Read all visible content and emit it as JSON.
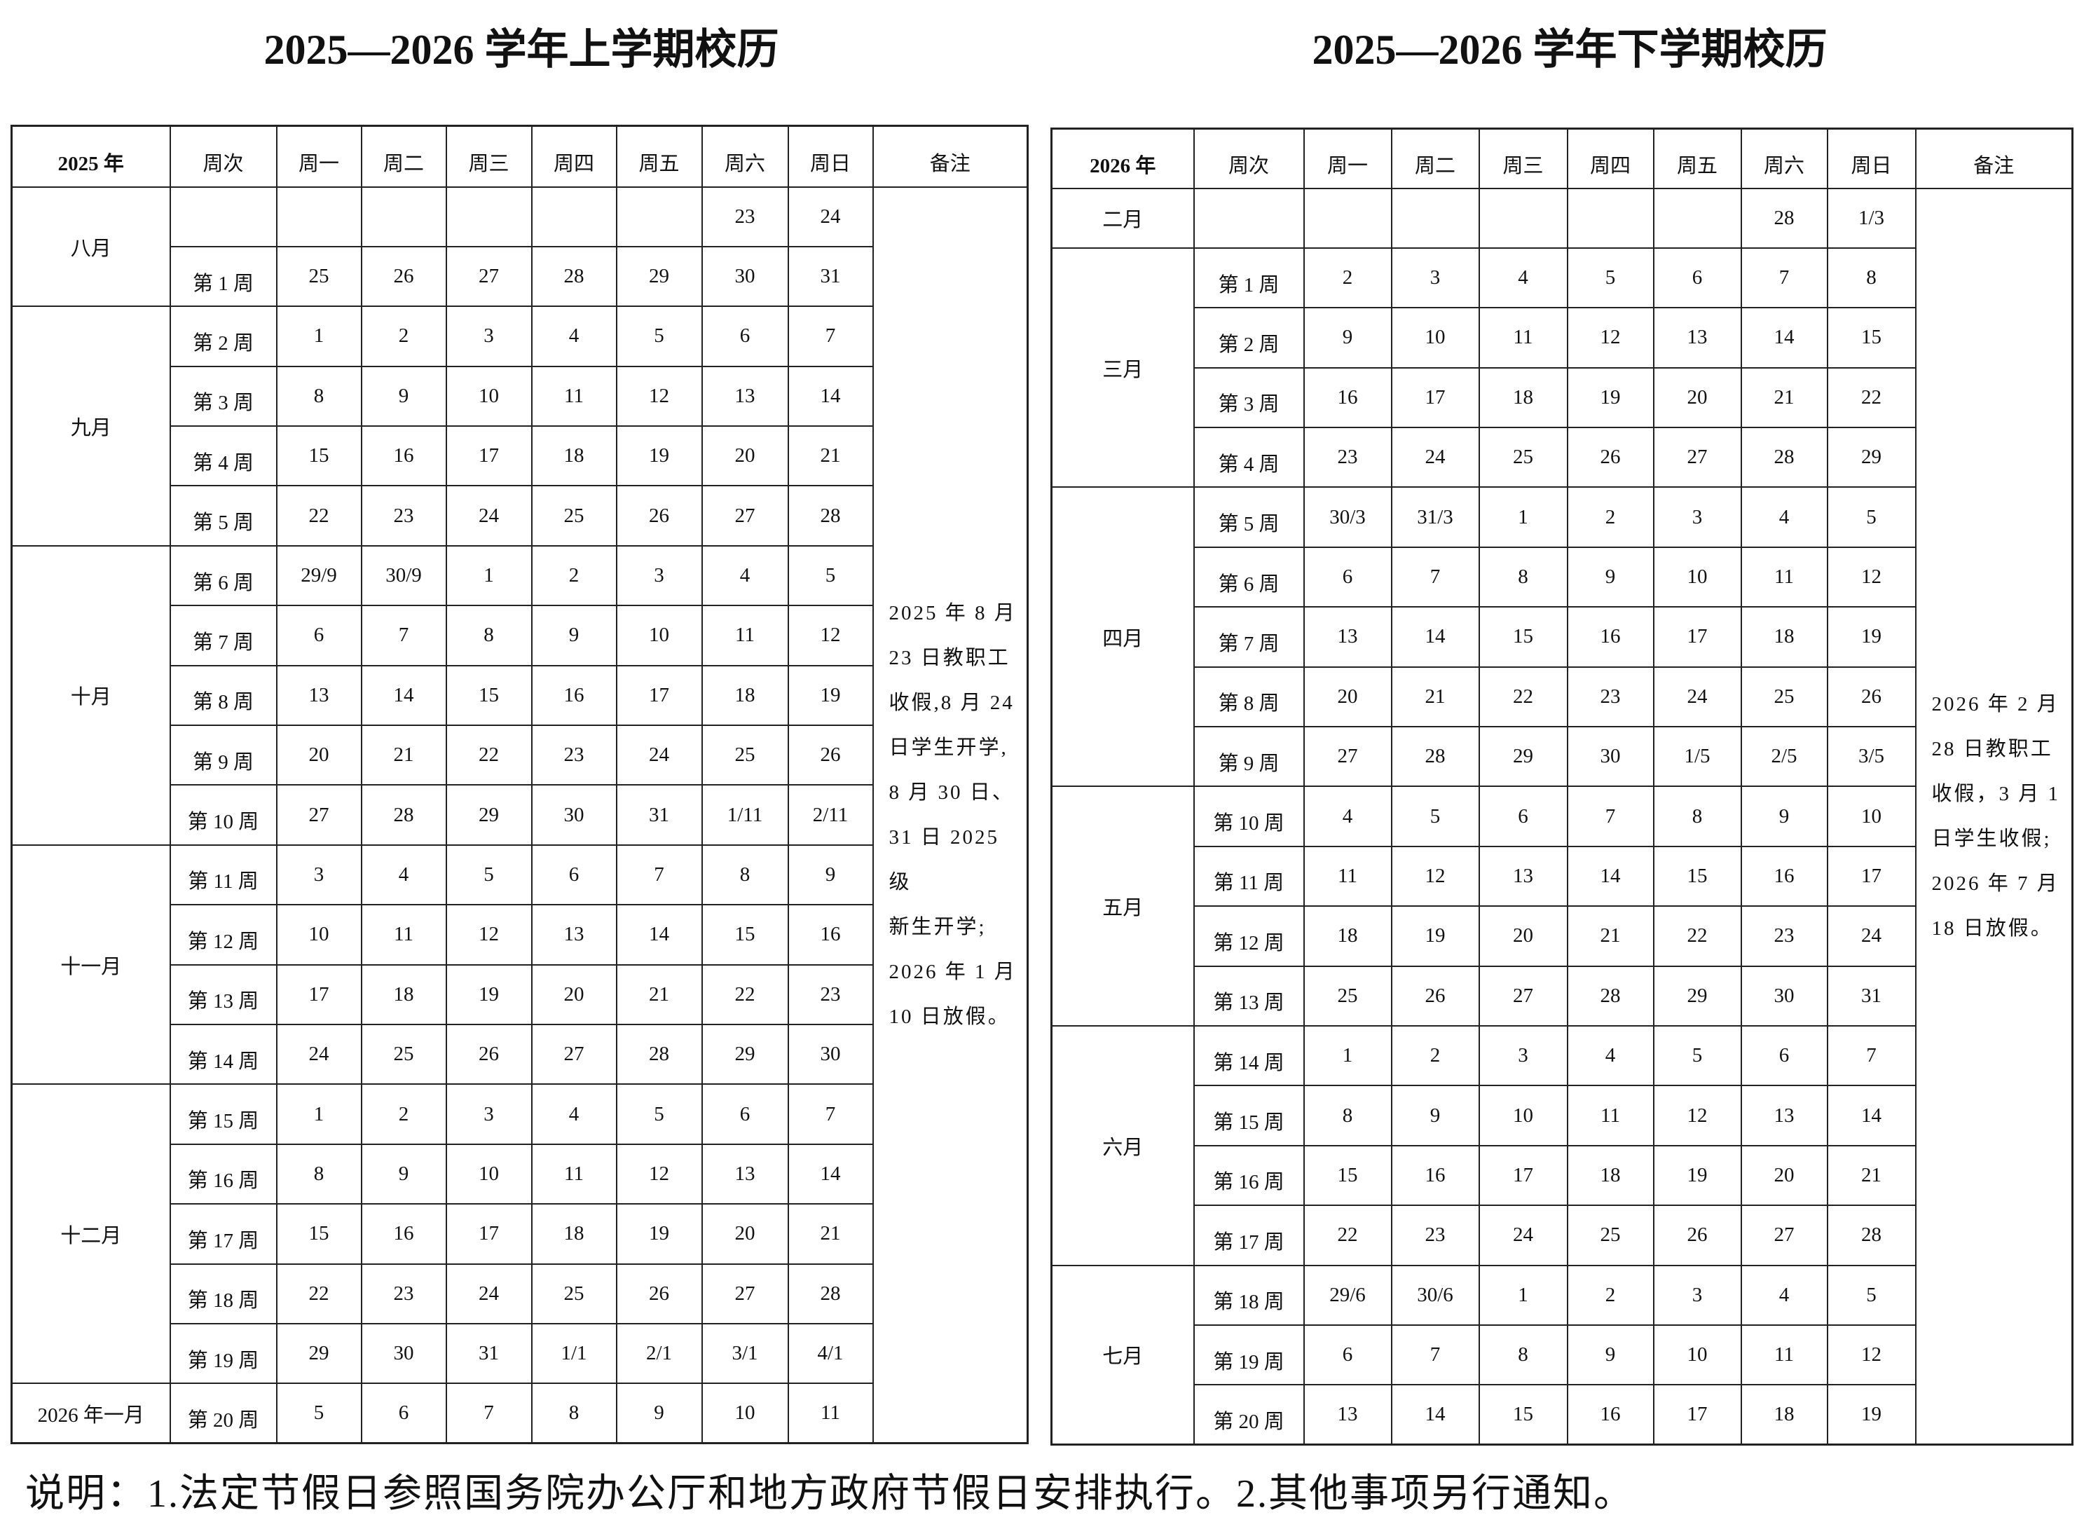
{
  "first": {
    "title": "2025—2026 学年上学期校历",
    "headers": [
      "2025 年",
      "周次",
      "周一",
      "周二",
      "周三",
      "周四",
      "周五",
      "周六",
      "周日",
      "备注"
    ],
    "months": [
      {
        "label": "八月",
        "rows": 2
      },
      {
        "label": "九月",
        "rows": 4
      },
      {
        "label": "十月",
        "rows": 5
      },
      {
        "label": "十一月",
        "rows": 4
      },
      {
        "label": "十二月",
        "rows": 5
      },
      {
        "label": "2026 年一月",
        "rows": 1
      }
    ],
    "rows": [
      {
        "week": "",
        "days": [
          "",
          "",
          "",
          "",
          "",
          "23",
          "24"
        ]
      },
      {
        "week": "第 1 周",
        "days": [
          "25",
          "26",
          "27",
          "28",
          "29",
          "30",
          "31"
        ]
      },
      {
        "week": "第 2 周",
        "days": [
          "1",
          "2",
          "3",
          "4",
          "5",
          "6",
          "7"
        ]
      },
      {
        "week": "第 3 周",
        "days": [
          "8",
          "9",
          "10",
          "11",
          "12",
          "13",
          "14"
        ]
      },
      {
        "week": "第 4 周",
        "days": [
          "15",
          "16",
          "17",
          "18",
          "19",
          "20",
          "21"
        ]
      },
      {
        "week": "第 5 周",
        "days": [
          "22",
          "23",
          "24",
          "25",
          "26",
          "27",
          "28"
        ]
      },
      {
        "week": "第 6 周",
        "days": [
          "29/9",
          "30/9",
          "1",
          "2",
          "3",
          "4",
          "5"
        ]
      },
      {
        "week": "第 7 周",
        "days": [
          "6",
          "7",
          "8",
          "9",
          "10",
          "11",
          "12"
        ]
      },
      {
        "week": "第 8 周",
        "days": [
          "13",
          "14",
          "15",
          "16",
          "17",
          "18",
          "19"
        ]
      },
      {
        "week": "第 9 周",
        "days": [
          "20",
          "21",
          "22",
          "23",
          "24",
          "25",
          "26"
        ]
      },
      {
        "week": "第 10 周",
        "days": [
          "27",
          "28",
          "29",
          "30",
          "31",
          "1/11",
          "2/11"
        ]
      },
      {
        "week": "第 11 周",
        "days": [
          "3",
          "4",
          "5",
          "6",
          "7",
          "8",
          "9"
        ]
      },
      {
        "week": "第 12 周",
        "days": [
          "10",
          "11",
          "12",
          "13",
          "14",
          "15",
          "16"
        ]
      },
      {
        "week": "第 13 周",
        "days": [
          "17",
          "18",
          "19",
          "20",
          "21",
          "22",
          "23"
        ]
      },
      {
        "week": "第 14 周",
        "days": [
          "24",
          "25",
          "26",
          "27",
          "28",
          "29",
          "30"
        ]
      },
      {
        "week": "第 15 周",
        "days": [
          "1",
          "2",
          "3",
          "4",
          "5",
          "6",
          "7"
        ]
      },
      {
        "week": "第 16 周",
        "days": [
          "8",
          "9",
          "10",
          "11",
          "12",
          "13",
          "14"
        ]
      },
      {
        "week": "第 17 周",
        "days": [
          "15",
          "16",
          "17",
          "18",
          "19",
          "20",
          "21"
        ]
      },
      {
        "week": "第 18 周",
        "days": [
          "22",
          "23",
          "24",
          "25",
          "26",
          "27",
          "28"
        ]
      },
      {
        "week": "第 19 周",
        "days": [
          "29",
          "30",
          "31",
          "1/1",
          "2/1",
          "3/1",
          "4/1"
        ]
      },
      {
        "week": "第 20 周",
        "days": [
          "5",
          "6",
          "7",
          "8",
          "9",
          "10",
          "11"
        ]
      }
    ],
    "note": [
      "2025 年 8 月",
      "23 日教职工",
      "收假,8 月 24",
      "日学生开学,",
      "8 月 30 日、",
      "31 日 2025 级",
      "新生开学;",
      "2026 年 1 月",
      "10 日放假。"
    ]
  },
  "second": {
    "title": "2025—2026 学年下学期校历",
    "headers": [
      "2026 年",
      "周次",
      "周一",
      "周二",
      "周三",
      "周四",
      "周五",
      "周六",
      "周日",
      "备注"
    ],
    "months": [
      {
        "label": "二月",
        "rows": 1
      },
      {
        "label": "三月",
        "rows": 4
      },
      {
        "label": "四月",
        "rows": 5
      },
      {
        "label": "五月",
        "rows": 4
      },
      {
        "label": "六月",
        "rows": 4
      },
      {
        "label": "七月",
        "rows": 3
      }
    ],
    "rows": [
      {
        "week": "",
        "days": [
          "",
          "",
          "",
          "",
          "",
          "28",
          "1/3"
        ]
      },
      {
        "week": "第 1 周",
        "days": [
          "2",
          "3",
          "4",
          "5",
          "6",
          "7",
          "8"
        ]
      },
      {
        "week": "第 2 周",
        "days": [
          "9",
          "10",
          "11",
          "12",
          "13",
          "14",
          "15"
        ]
      },
      {
        "week": "第 3 周",
        "days": [
          "16",
          "17",
          "18",
          "19",
          "20",
          "21",
          "22"
        ]
      },
      {
        "week": "第 4 周",
        "days": [
          "23",
          "24",
          "25",
          "26",
          "27",
          "28",
          "29"
        ]
      },
      {
        "week": "第 5 周",
        "days": [
          "30/3",
          "31/3",
          "1",
          "2",
          "3",
          "4",
          "5"
        ]
      },
      {
        "week": "第 6 周",
        "days": [
          "6",
          "7",
          "8",
          "9",
          "10",
          "11",
          "12"
        ]
      },
      {
        "week": "第 7 周",
        "days": [
          "13",
          "14",
          "15",
          "16",
          "17",
          "18",
          "19"
        ]
      },
      {
        "week": "第 8 周",
        "days": [
          "20",
          "21",
          "22",
          "23",
          "24",
          "25",
          "26"
        ]
      },
      {
        "week": "第 9 周",
        "days": [
          "27",
          "28",
          "29",
          "30",
          "1/5",
          "2/5",
          "3/5"
        ]
      },
      {
        "week": "第 10 周",
        "days": [
          "4",
          "5",
          "6",
          "7",
          "8",
          "9",
          "10"
        ]
      },
      {
        "week": "第 11 周",
        "days": [
          "11",
          "12",
          "13",
          "14",
          "15",
          "16",
          "17"
        ]
      },
      {
        "week": "第 12 周",
        "days": [
          "18",
          "19",
          "20",
          "21",
          "22",
          "23",
          "24"
        ]
      },
      {
        "week": "第 13 周",
        "days": [
          "25",
          "26",
          "27",
          "28",
          "29",
          "30",
          "31"
        ]
      },
      {
        "week": "第 14 周",
        "days": [
          "1",
          "2",
          "3",
          "4",
          "5",
          "6",
          "7"
        ]
      },
      {
        "week": "第 15 周",
        "days": [
          "8",
          "9",
          "10",
          "11",
          "12",
          "13",
          "14"
        ]
      },
      {
        "week": "第 16 周",
        "days": [
          "15",
          "16",
          "17",
          "18",
          "19",
          "20",
          "21"
        ]
      },
      {
        "week": "第 17 周",
        "days": [
          "22",
          "23",
          "24",
          "25",
          "26",
          "27",
          "28"
        ]
      },
      {
        "week": "第 18 周",
        "days": [
          "29/6",
          "30/6",
          "1",
          "2",
          "3",
          "4",
          "5"
        ]
      },
      {
        "week": "第 19 周",
        "days": [
          "6",
          "7",
          "8",
          "9",
          "10",
          "11",
          "12"
        ]
      },
      {
        "week": "第 20 周",
        "days": [
          "13",
          "14",
          "15",
          "16",
          "17",
          "18",
          "19"
        ]
      }
    ],
    "note": [
      "2026 年 2 月",
      "28 日教职工",
      "收假，3 月 1",
      "日学生收假;",
      "2026 年 7 月",
      "18 日放假。"
    ]
  },
  "footnote": "说明：1.法定节假日参照国务院办公厅和地方政府节假日安排执行。2.其他事项另行通知。"
}
